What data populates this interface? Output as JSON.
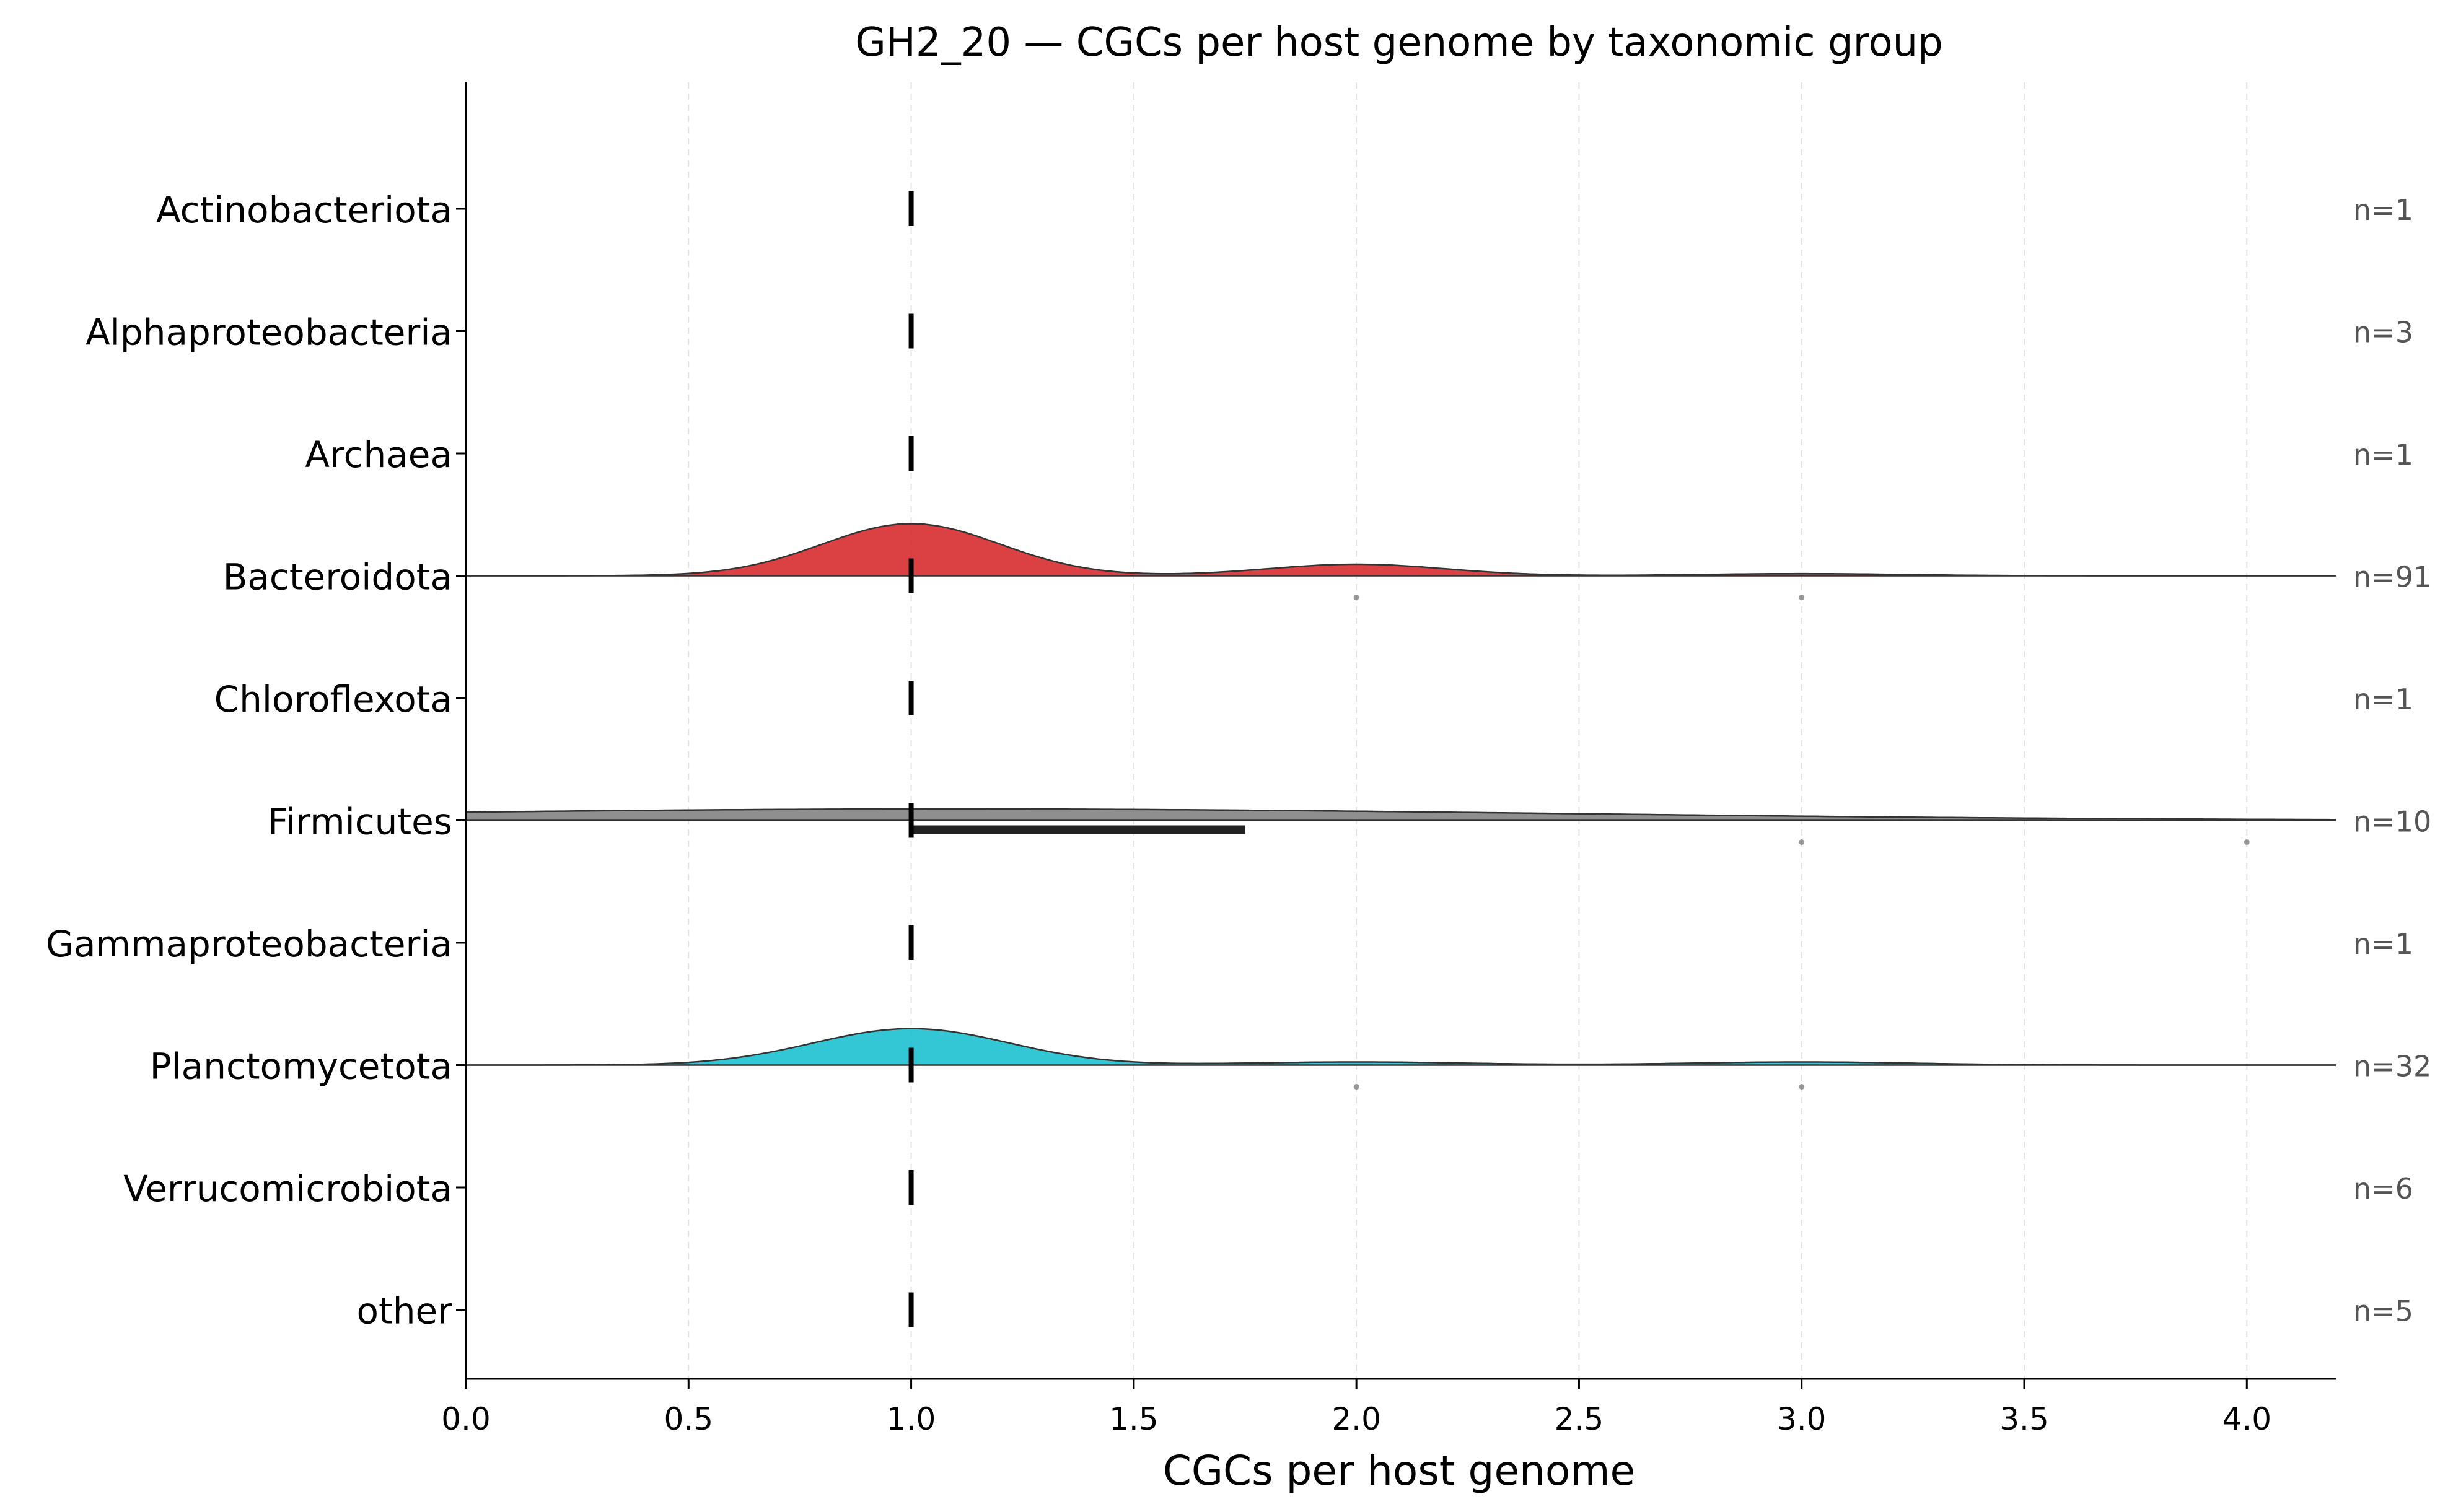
{
  "chart_data": {
    "type": "ridgeline",
    "title": "GH2_20 — CGCs per host genome by taxonomic group",
    "xlabel": "CGCs per host genome",
    "ylabel": "",
    "xlim": [
      0,
      4.2
    ],
    "x_ticks": [
      0.0,
      0.5,
      1.0,
      1.5,
      2.0,
      2.5,
      3.0,
      3.5,
      4.0
    ],
    "x_tick_labels": [
      "0.0",
      "0.5",
      "1.0",
      "1.5",
      "2.0",
      "2.5",
      "3.0",
      "3.5",
      "4.0"
    ],
    "grid": "vertical dashed",
    "legend": "none",
    "groups": [
      {
        "name": "Actinobacteriota",
        "n_label": "n=1",
        "median": 1.0,
        "density": null,
        "box": null,
        "outliers": []
      },
      {
        "name": "Alphaproteobacteria",
        "n_label": "n=3",
        "median": 1.0,
        "density": null,
        "box": null,
        "outliers": []
      },
      {
        "name": "Archaea",
        "n_label": "n=1",
        "median": 1.0,
        "density": null,
        "box": null,
        "outliers": []
      },
      {
        "name": "Bacteroidota",
        "n_label": "n=91",
        "median": 1.0,
        "color": "#d62728",
        "density": [
          {
            "mean": 1.0,
            "sd": 0.2,
            "peak": 1.0
          },
          {
            "mean": 2.0,
            "sd": 0.2,
            "peak": 0.22
          },
          {
            "mean": 3.0,
            "sd": 0.22,
            "peak": 0.04
          }
        ],
        "box": null,
        "outliers": [
          2.0,
          3.0
        ]
      },
      {
        "name": "Chloroflexota",
        "n_label": "n=1",
        "median": 1.0,
        "density": null,
        "box": null,
        "outliers": []
      },
      {
        "name": "Firmicutes",
        "n_label": "n=10",
        "median": 1.0,
        "color": "#7f7f7f",
        "density": [
          {
            "mean": 1.1,
            "sd": 1.35,
            "peak": 0.22
          }
        ],
        "box": [
          1.0,
          1.75
        ],
        "outliers": [
          3.0,
          4.0
        ]
      },
      {
        "name": "Gammaproteobacteria",
        "n_label": "n=1",
        "median": 1.0,
        "density": null,
        "box": null,
        "outliers": []
      },
      {
        "name": "Planctomycetota",
        "n_label": "n=32",
        "median": 1.0,
        "color": "#17becf",
        "density": [
          {
            "mean": 1.0,
            "sd": 0.22,
            "peak": 0.7
          },
          {
            "mean": 2.0,
            "sd": 0.25,
            "peak": 0.06
          },
          {
            "mean": 3.0,
            "sd": 0.25,
            "peak": 0.06
          }
        ],
        "box": null,
        "outliers": [
          2.0,
          3.0
        ]
      },
      {
        "name": "Verrucomicrobiota",
        "n_label": "n=6",
        "median": 1.0,
        "density": null,
        "box": null,
        "outliers": []
      },
      {
        "name": "other",
        "n_label": "n=5",
        "median": 1.0,
        "density": null,
        "box": null,
        "outliers": []
      }
    ]
  }
}
